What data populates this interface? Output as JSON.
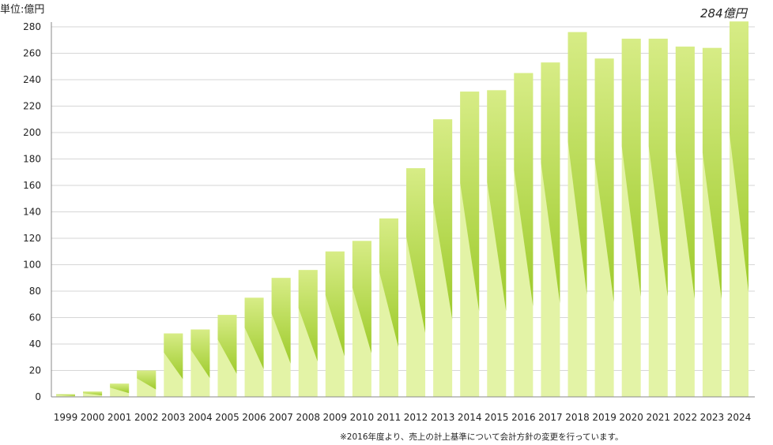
{
  "unit_label": "単位:億円",
  "callout": "284億円",
  "footnote": "※2016年度より、売上の計上基準について会計方針の変更を行っています。",
  "colors": {
    "bar_light": "#e3f3a6",
    "bar_dark_top": "#c9e46a",
    "bar_dark_bottom": "#a8cf3a",
    "grid": "#d6d6d6",
    "axis": "#888888"
  },
  "chart_data": {
    "type": "bar",
    "title": "",
    "xlabel": "",
    "ylabel": "単位:億円",
    "ylim": [
      0,
      280
    ],
    "yticks": [
      0,
      20,
      40,
      60,
      80,
      100,
      120,
      140,
      160,
      180,
      200,
      220,
      240,
      260,
      280
    ],
    "grid": true,
    "categories": [
      "1999",
      "2000",
      "2001",
      "2002",
      "2003",
      "2004",
      "2005",
      "2006",
      "2007",
      "2008",
      "2009",
      "2010",
      "2011",
      "2012",
      "2013",
      "2014",
      "2015",
      "2016",
      "2017",
      "2018",
      "2019",
      "2020",
      "2021",
      "2022",
      "2023",
      "2024"
    ],
    "values": [
      2,
      4,
      10,
      20,
      48,
      51,
      62,
      75,
      90,
      96,
      110,
      118,
      135,
      173,
      210,
      231,
      232,
      245,
      253,
      276,
      256,
      271,
      271,
      265,
      264,
      284
    ]
  }
}
